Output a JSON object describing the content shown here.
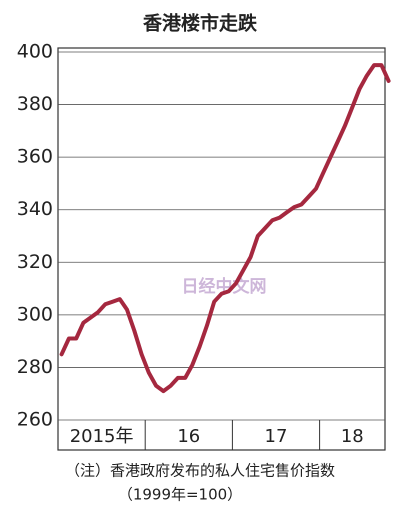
{
  "chart_data": {
    "type": "line",
    "title": "香港楼市走跌",
    "x_labels": [
      "2015年",
      "16",
      "17",
      "18"
    ],
    "values": [
      285,
      291,
      291,
      297,
      299,
      301,
      304,
      305,
      306,
      302,
      294,
      285,
      278,
      273,
      271,
      273,
      276,
      276,
      281,
      288,
      296,
      305,
      308,
      309,
      312,
      317,
      322,
      330,
      333,
      336,
      337,
      339,
      341,
      342,
      345,
      348,
      354,
      360,
      366,
      372,
      379,
      386,
      391,
      395,
      395,
      389
    ],
    "color": "#a5283f",
    "ylim": [
      260,
      400
    ],
    "yticks": [
      260,
      280,
      300,
      320,
      340,
      360,
      380,
      400
    ],
    "watermark": "日经中文网",
    "notes": [
      "（注）香港政府发布的私人住宅售价指数",
      "（1999年=100）"
    ]
  }
}
